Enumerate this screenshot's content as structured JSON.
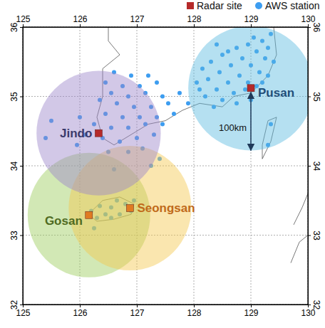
{
  "chart_data": {
    "type": "map",
    "xlim": [
      125,
      130
    ],
    "ylim": [
      32,
      36
    ],
    "xticks": [
      125,
      126,
      127,
      128,
      129,
      130
    ],
    "yticks": [
      32,
      33,
      34,
      35,
      36
    ],
    "grid": true,
    "legend": "top right",
    "series": [
      {
        "name": "Radar site",
        "marker": "square",
        "color": "#b52a2a",
        "colors": [
          "#b52a2a",
          "#e07b22",
          "#e07b22",
          "#b52a2a"
        ],
        "labels": [
          "Jindo",
          "Gosan",
          "Seongsan",
          "Pusan"
        ],
        "label_colors": [
          "#3b3a6b",
          "#4f6b22",
          "#c06a1a",
          "#1f4e79"
        ],
        "circle_colors": [
          "#9b86c9",
          "#9ccc5c",
          "#f5c74e",
          "#5bbbe0"
        ],
        "x": [
          126.33,
          126.16,
          126.88,
          129.0
        ],
        "y": [
          34.47,
          33.29,
          33.39,
          35.12
        ],
        "radius": {
          "value": 100,
          "label": "100km"
        }
      },
      {
        "name": "AWS station",
        "marker": "circle",
        "color": "#3d9df0",
        "x": [
          129.05,
          129.2,
          128.95,
          129.3,
          128.75,
          129.1,
          128.5,
          128.85,
          129.25,
          129.4,
          128.3,
          128.65,
          129.0,
          128.15,
          128.45,
          128.8,
          129.15,
          129.3,
          128.25,
          128.6,
          128.95,
          129.1,
          128.1,
          128.4,
          128.7,
          128.9,
          128.2,
          128.5,
          128.75,
          128.35,
          129.2,
          128.05,
          128.6,
          129.35,
          128.4,
          129.0,
          129.3,
          129.35,
          126.6,
          126.9,
          127.2,
          126.45,
          126.75,
          127.05,
          127.35,
          126.55,
          126.85,
          127.15,
          127.45,
          126.35,
          126.65,
          126.95,
          127.25,
          127.55,
          126.45,
          126.75,
          127.05,
          127.35,
          126.25,
          126.55,
          126.85,
          127.15,
          127.45,
          126.1,
          126.4,
          126.7,
          127.0,
          127.3,
          126.0,
          125.95,
          126.5,
          126.85,
          127.1,
          125.4,
          125.5,
          127.65,
          127.75,
          127.9,
          127.4,
          126.6,
          127.25,
          126.2,
          126.3,
          126.45,
          126.55,
          126.65,
          126.8,
          126.9,
          126.7,
          126.55,
          126.35,
          126.25,
          126.95
        ],
        "y": [
          35.85,
          35.8,
          35.75,
          35.7,
          35.7,
          35.65,
          35.6,
          35.55,
          35.55,
          35.5,
          35.5,
          35.45,
          35.45,
          35.4,
          35.35,
          35.3,
          35.35,
          35.3,
          35.25,
          35.2,
          35.2,
          35.15,
          35.1,
          35.1,
          35.05,
          35.1,
          35.0,
          34.95,
          34.9,
          34.85,
          35.2,
          35.2,
          35.65,
          35.9,
          35.75,
          34.95,
          34.3,
          34.6,
          35.35,
          35.3,
          35.3,
          35.2,
          35.15,
          35.15,
          35.2,
          35.05,
          35.0,
          35.05,
          35.0,
          34.95,
          34.9,
          34.85,
          34.85,
          34.9,
          34.75,
          34.7,
          34.7,
          34.7,
          34.6,
          34.55,
          34.55,
          34.6,
          34.6,
          34.45,
          34.4,
          34.35,
          34.4,
          34.45,
          34.7,
          34.3,
          34.2,
          34.2,
          34.25,
          34.4,
          34.65,
          34.75,
          35.05,
          34.9,
          34.1,
          33.95,
          34.0,
          33.35,
          33.25,
          33.3,
          33.4,
          33.5,
          33.45,
          33.35,
          33.3,
          33.25,
          33.42,
          33.1,
          33.5
        ]
      }
    ],
    "coastline": [
      [
        [
          126.5,
          36.0
        ],
        [
          126.5,
          35.8
        ],
        [
          126.7,
          35.6
        ],
        [
          126.4,
          35.4
        ],
        [
          126.4,
          35.0
        ],
        [
          126.3,
          34.7
        ],
        [
          126.4,
          34.4
        ],
        [
          126.6,
          34.3
        ],
        [
          126.9,
          34.45
        ],
        [
          127.2,
          34.6
        ],
        [
          127.5,
          34.65
        ],
        [
          127.8,
          34.8
        ],
        [
          128.1,
          34.9
        ],
        [
          128.5,
          34.85
        ],
        [
          128.7,
          35.0
        ],
        [
          129.0,
          35.05
        ],
        [
          129.3,
          35.3
        ],
        [
          129.45,
          35.6
        ],
        [
          129.4,
          36.0
        ]
      ],
      [
        [
          126.15,
          33.3
        ],
        [
          126.3,
          33.2
        ],
        [
          126.6,
          33.23
        ],
        [
          126.9,
          33.3
        ],
        [
          126.95,
          33.45
        ],
        [
          126.7,
          33.55
        ],
        [
          126.4,
          33.5
        ],
        [
          126.15,
          33.3
        ]
      ],
      [
        [
          129.2,
          34.1
        ],
        [
          129.35,
          34.35
        ],
        [
          129.45,
          34.7
        ],
        [
          129.3,
          34.65
        ],
        [
          129.2,
          34.3
        ],
        [
          129.2,
          34.1
        ]
      ],
      [
        [
          129.75,
          33.15
        ],
        [
          129.9,
          33.4
        ],
        [
          130.0,
          33.6
        ]
      ],
      [
        [
          129.7,
          32.6
        ],
        [
          129.85,
          32.9
        ],
        [
          130.0,
          33.0
        ]
      ]
    ]
  }
}
